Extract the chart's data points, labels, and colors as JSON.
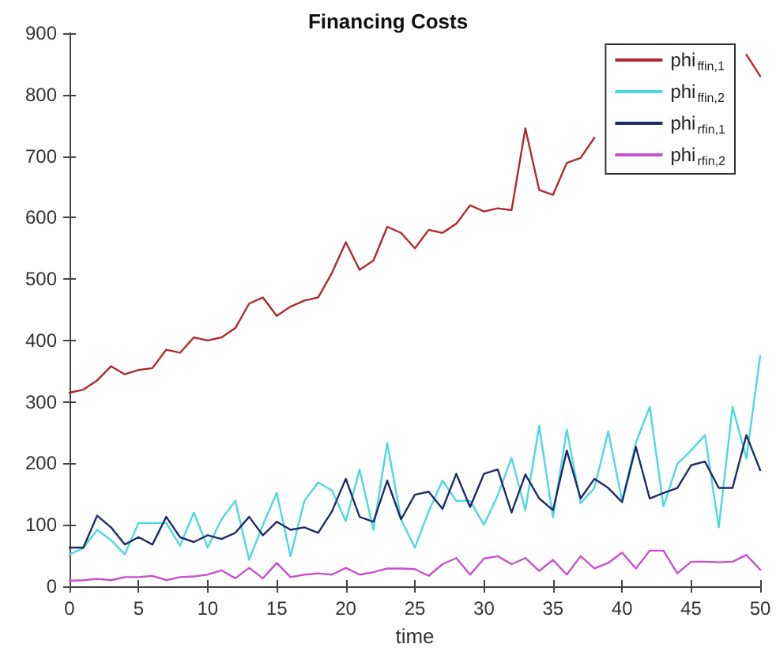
{
  "chart_data": {
    "type": "line",
    "title": "Financing Costs",
    "xlabel": "time",
    "x": [
      0,
      1,
      2,
      3,
      4,
      5,
      6,
      7,
      8,
      9,
      10,
      11,
      12,
      13,
      14,
      15,
      16,
      17,
      18,
      19,
      20,
      21,
      22,
      23,
      24,
      25,
      26,
      27,
      28,
      29,
      30,
      31,
      32,
      33,
      34,
      35,
      36,
      37,
      38,
      39,
      40,
      41,
      42,
      43,
      44,
      45,
      46,
      47,
      48,
      49,
      50
    ],
    "series": [
      {
        "name": "phi$_{ffin,1}$",
        "color": "#b2282e",
        "values": [
          315,
          320,
          335,
          358,
          345,
          352,
          355,
          385,
          380,
          405,
          400,
          405,
          420,
          460,
          470,
          440,
          455,
          465,
          470,
          510,
          560,
          515,
          530,
          585,
          575,
          550,
          580,
          575,
          590,
          620,
          610,
          615,
          612,
          745,
          645,
          637,
          689,
          697,
          730,
          null,
          null,
          null,
          null,
          null,
          null,
          null,
          null,
          null,
          null,
          865,
          830
        ]
      },
      {
        "name": "phi$_{ffin,2}$",
        "color": "#4dd8e0",
        "values": [
          52,
          62,
          92,
          75,
          52,
          103,
          103,
          103,
          66,
          120,
          63,
          109,
          139,
          43,
          100,
          152,
          49,
          139,
          169,
          156,
          106,
          190,
          92,
          233,
          109,
          63,
          122,
          172,
          139,
          139,
          100,
          148,
          209,
          124,
          261,
          112,
          255,
          135,
          160,
          252,
          139,
          233,
          292,
          130,
          199,
          221,
          246,
          96,
          292,
          208,
          375
        ]
      },
      {
        "name": "phi$_{rfin,1}$",
        "color": "#1f2a6b",
        "values": [
          63,
          63,
          115,
          96,
          68,
          80,
          68,
          113,
          80,
          72,
          83,
          77,
          87,
          113,
          83,
          105,
          92,
          96,
          87,
          122,
          175,
          113,
          105,
          172,
          109,
          149,
          154,
          126,
          183,
          129,
          183,
          190,
          120,
          182,
          143,
          124,
          221,
          143,
          175,
          160,
          137,
          227,
          143,
          152,
          160,
          197,
          203,
          160,
          160,
          246,
          189
        ]
      },
      {
        "name": "phi$_{rfin,2}$",
        "color": "#c84fd0",
        "values": [
          9,
          10,
          12,
          10,
          15,
          15,
          17,
          10,
          15,
          16,
          19,
          26,
          13,
          30,
          13,
          38,
          15,
          19,
          21,
          19,
          30,
          19,
          23,
          29,
          29,
          28,
          17,
          36,
          46,
          19,
          45,
          49,
          36,
          46,
          25,
          43,
          19,
          49,
          29,
          38,
          55,
          29,
          58,
          58,
          21,
          40,
          40,
          39,
          40,
          51,
          27
        ]
      }
    ],
    "xlim": [
      0,
      50
    ],
    "xticks": [
      0,
      5,
      10,
      15,
      20,
      25,
      30,
      35,
      40,
      45,
      50
    ],
    "ylim": [
      0,
      900
    ],
    "yticks": [
      0,
      100,
      200,
      300,
      400,
      500,
      600,
      700,
      800,
      900
    ],
    "legend": "top right",
    "grid": false,
    "marker": "none",
    "line_style": "solid"
  }
}
